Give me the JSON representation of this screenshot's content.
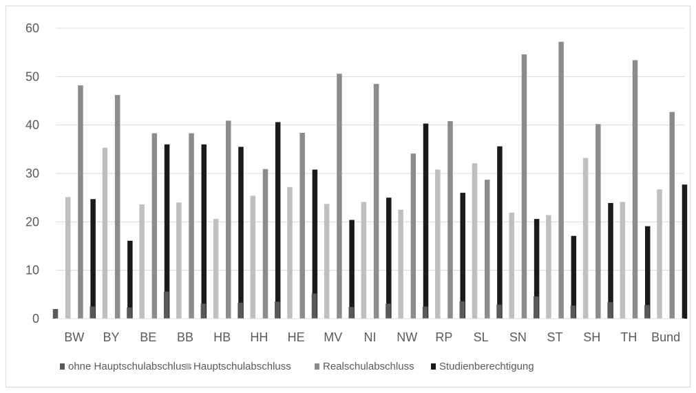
{
  "chart_data": {
    "type": "bar",
    "categories": [
      "BW",
      "BY",
      "BE",
      "BB",
      "HB",
      "HH",
      "HE",
      "MV",
      "NI",
      "NW",
      "RP",
      "SL",
      "SN",
      "ST",
      "SH",
      "TH",
      "Bund"
    ],
    "series": [
      {
        "name": "ohne Hauptschulabschluss",
        "color": "#595959",
        "values": [
          2.0,
          2.5,
          2.3,
          5.6,
          3.1,
          3.3,
          3.5,
          5.2,
          2.4,
          3.1,
          2.5,
          3.6,
          2.9,
          4.6,
          2.7,
          3.4,
          2.8
        ]
      },
      {
        "name": "Hauptschulabschluss",
        "color": "#bfbfbf",
        "values": [
          25.1,
          35.3,
          23.6,
          24.0,
          20.6,
          25.4,
          27.2,
          23.7,
          24.1,
          22.5,
          30.8,
          32.1,
          21.9,
          21.4,
          33.2,
          24.1,
          26.7
        ]
      },
      {
        "name": "Realschulabschluss",
        "color": "#8c8c8c",
        "values": [
          48.2,
          46.2,
          38.3,
          38.3,
          40.9,
          30.9,
          38.4,
          50.6,
          48.5,
          34.1,
          40.8,
          28.7,
          54.6,
          57.2,
          40.2,
          53.4,
          42.7
        ]
      },
      {
        "name": "Studienberechtigung",
        "color": "#1a1a1a",
        "values": [
          24.7,
          16.1,
          36.0,
          36.0,
          35.5,
          40.6,
          30.8,
          20.4,
          25.0,
          40.3,
          26.0,
          35.6,
          20.6,
          17.1,
          23.9,
          19.1,
          27.7
        ]
      }
    ],
    "yticks": [
      0,
      10,
      20,
      30,
      40,
      50,
      60
    ],
    "ylim": [
      0,
      60
    ],
    "grid": true,
    "legend_position": "bottom"
  }
}
